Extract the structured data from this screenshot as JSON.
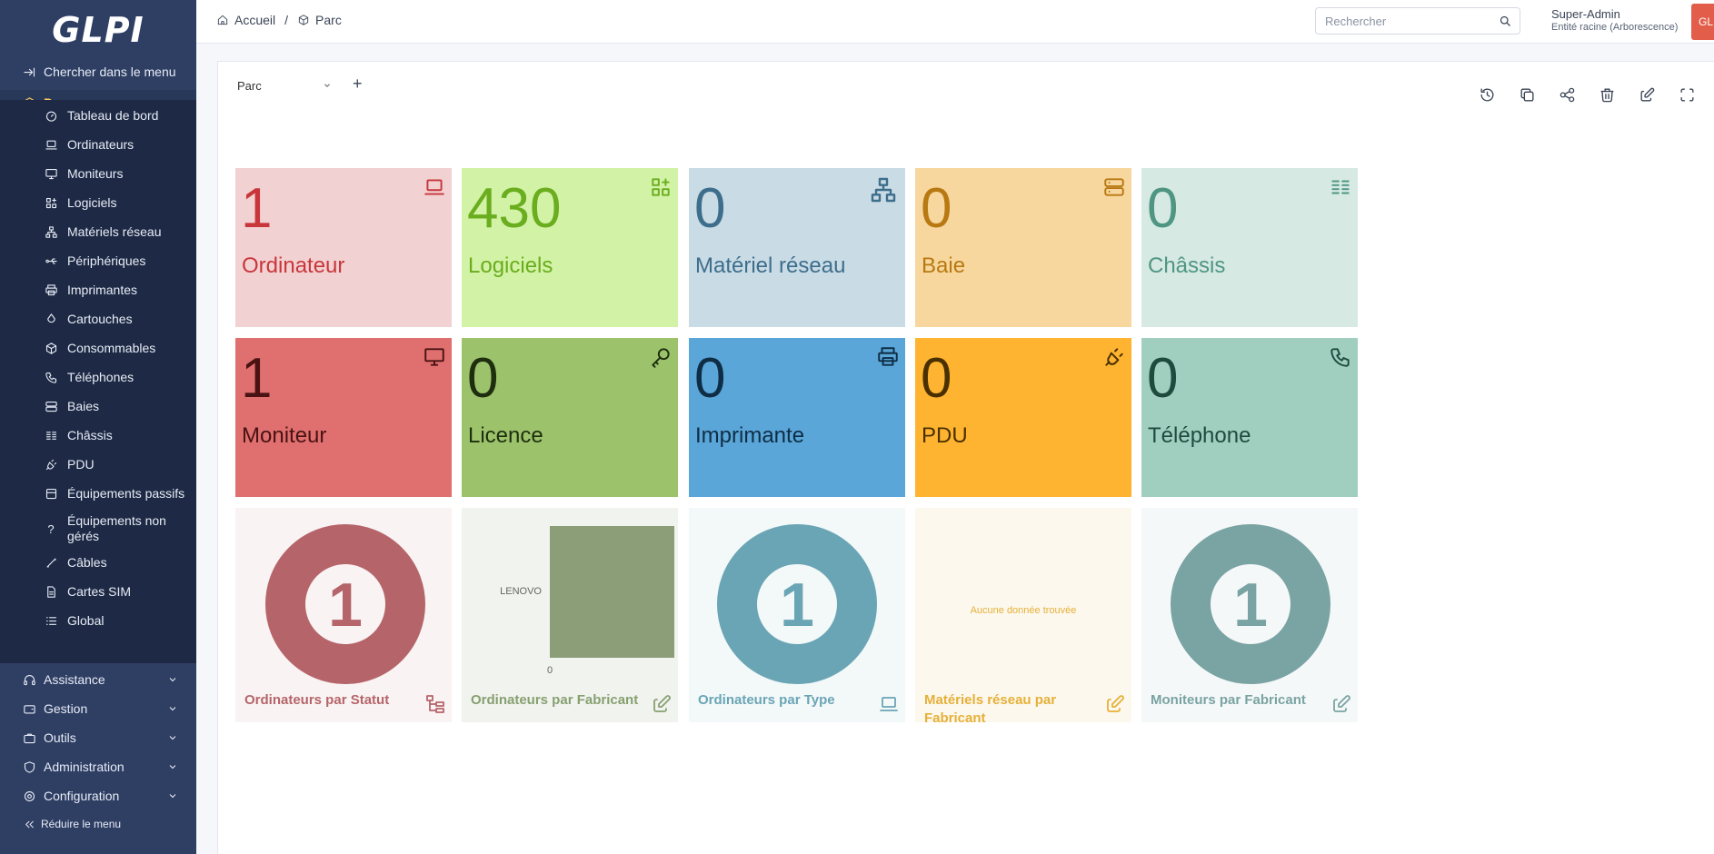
{
  "app": {
    "logo": "GLPI"
  },
  "sidebar": {
    "search_menu": "Chercher dans le menu",
    "parc": "Parc",
    "sub_items": [
      {
        "label": "Tableau de bord",
        "icon": "dashboard-icon"
      },
      {
        "label": "Ordinateurs",
        "icon": "laptop-icon"
      },
      {
        "label": "Moniteurs",
        "icon": "monitor-icon"
      },
      {
        "label": "Logiciels",
        "icon": "apps-icon"
      },
      {
        "label": "Matériels réseau",
        "icon": "network-icon"
      },
      {
        "label": "Périphériques",
        "icon": "usb-icon"
      },
      {
        "label": "Imprimantes",
        "icon": "printer-icon"
      },
      {
        "label": "Cartouches",
        "icon": "droplet-icon"
      },
      {
        "label": "Consommables",
        "icon": "package-icon"
      },
      {
        "label": "Téléphones",
        "icon": "phone-icon"
      },
      {
        "label": "Baies",
        "icon": "server-icon"
      },
      {
        "label": "Châssis",
        "icon": "columns-icon"
      },
      {
        "label": "PDU",
        "icon": "plug-icon"
      },
      {
        "label": "Équipements passifs",
        "icon": "box-icon"
      },
      {
        "label": "Équipements non gérés",
        "icon": "question-icon"
      },
      {
        "label": "Câbles",
        "icon": "cable-icon"
      },
      {
        "label": "Cartes SIM",
        "icon": "sim-icon"
      },
      {
        "label": "Global",
        "icon": "list-icon"
      }
    ],
    "assistance": "Assistance",
    "gestion": "Gestion",
    "outils": "Outils",
    "administration": "Administration",
    "configuration": "Configuration",
    "reduce": "Réduire le menu"
  },
  "header": {
    "breadcrumb_home": "Accueil",
    "breadcrumb_sep": "/",
    "breadcrumb_current": "Parc",
    "search_placeholder": "Rechercher",
    "user_name": "Super-Admin",
    "user_entity": "Entité racine (Arborescence)",
    "avatar": "GL"
  },
  "dashboard": {
    "selected": "Parc",
    "add": "+",
    "tiles": [
      {
        "value": "1",
        "label": "Ordinateur",
        "icon": "laptop-icon",
        "bg": "#f2d1d2",
        "fg": "#c8363b"
      },
      {
        "value": "430",
        "label": "Logiciels",
        "icon": "apps-icon",
        "bg": "#d2f2a5",
        "fg": "#6aad1e"
      },
      {
        "value": "0",
        "label": "Matériel réseau",
        "icon": "network-icon",
        "bg": "#c9dbe5",
        "fg": "#3d6e8c"
      },
      {
        "value": "0",
        "label": "Baie",
        "icon": "server-icon",
        "bg": "#f7d79d",
        "fg": "#b87913"
      },
      {
        "value": "0",
        "label": "Châssis",
        "icon": "columns-icon",
        "bg": "#d6e9e3",
        "fg": "#4f9682"
      },
      {
        "value": "1",
        "label": "Moniteur",
        "icon": "monitor-icon",
        "bg": "#e07070",
        "fg": "#4a1212"
      },
      {
        "value": "0",
        "label": "Licence",
        "icon": "key-icon",
        "bg": "#9cc36b",
        "fg": "#1e2e0e"
      },
      {
        "value": "0",
        "label": "Imprimante",
        "icon": "printer-icon",
        "bg": "#5aa6d8",
        "fg": "#0f2d45"
      },
      {
        "value": "0",
        "label": "PDU",
        "icon": "plug-icon",
        "bg": "#feb430",
        "fg": "#4a3000"
      },
      {
        "value": "0",
        "label": "Téléphone",
        "icon": "phone-icon",
        "bg": "#a0cfc0",
        "fg": "#1f4a3e"
      }
    ],
    "charts": [
      {
        "title": "Ordinateurs par Statut",
        "icon": "hierarchy-icon",
        "bg": "#faf3f3",
        "fg": "#b5656a",
        "value": "1"
      },
      {
        "title": "Ordinateurs par Fabricant",
        "icon": "edit-icon",
        "bg": "#f1f3ef",
        "fg": "#87a070",
        "category": "LENOVO",
        "axis_zero": "0",
        "bar_color": "#8c9e78"
      },
      {
        "title": "Ordinateurs par Type",
        "icon": "laptop-icon",
        "bg": "#f3f8f9",
        "fg": "#6aa5b5",
        "value": "1"
      },
      {
        "title": "Matériels réseau par Fabricant",
        "icon": "edit-icon",
        "bg": "#fcf8ee",
        "fg": "#e6b038",
        "empty": "Aucune donnée trouvée"
      },
      {
        "title": "Moniteurs par Fabricant",
        "icon": "edit-icon",
        "bg": "#f5f8f8",
        "fg": "#7aa3a3",
        "value": "1"
      }
    ]
  }
}
